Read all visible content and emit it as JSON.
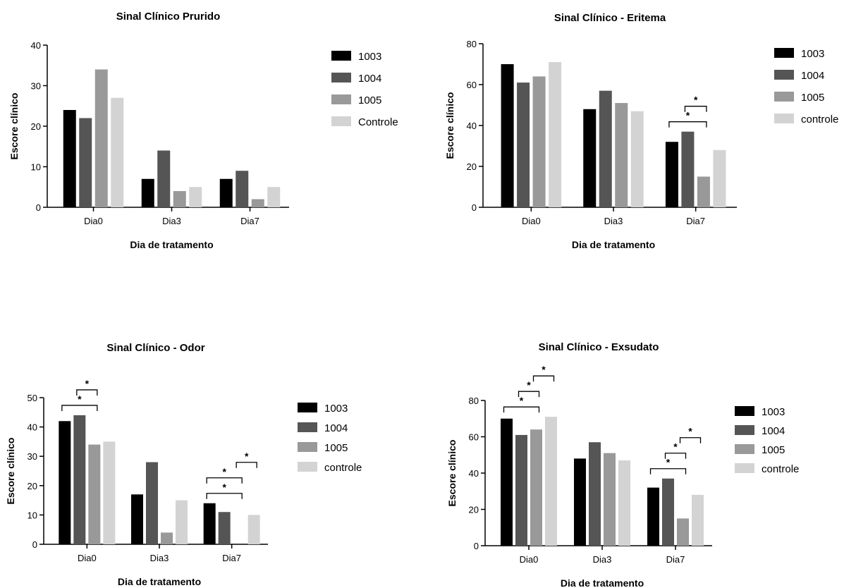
{
  "chart_data": [
    {
      "type": "bar",
      "title": "Sinal Clínico Prurido",
      "xlabel": "Dia de tratamento",
      "ylabel": "Escore clínico",
      "ylim": [
        0,
        40
      ],
      "yticks": [
        0,
        10,
        20,
        30,
        40
      ],
      "categories": [
        "Dia0",
        "Dia3",
        "Dia7"
      ],
      "legend_position": "right",
      "series": [
        {
          "name": "1003",
          "color": "#000000",
          "values": [
            24,
            7,
            7
          ]
        },
        {
          "name": "1004",
          "color": "#555555",
          "values": [
            22,
            14,
            9
          ]
        },
        {
          "name": "1005",
          "color": "#999999",
          "values": [
            34,
            4,
            2
          ]
        },
        {
          "name": "Controle",
          "color": "#d3d3d3",
          "values": [
            27,
            5,
            5
          ]
        }
      ],
      "significance": []
    },
    {
      "type": "bar",
      "title": "Sinal Clínico - Eritema",
      "xlabel": "Dia de tratamento",
      "ylabel": "Escore clínico",
      "ylim": [
        0,
        80
      ],
      "yticks": [
        0,
        20,
        40,
        60,
        80
      ],
      "categories": [
        "Dia0",
        "Dia3",
        "Dia7"
      ],
      "legend_position": "right",
      "series": [
        {
          "name": "1003",
          "color": "#000000",
          "values": [
            70,
            48,
            32
          ]
        },
        {
          "name": "1004",
          "color": "#555555",
          "values": [
            61,
            57,
            37
          ]
        },
        {
          "name": "1005",
          "color": "#999999",
          "values": [
            64,
            51,
            15
          ]
        },
        {
          "name": "controle",
          "color": "#d3d3d3",
          "values": [
            71,
            47,
            28
          ]
        }
      ],
      "significance": [
        {
          "category": 2,
          "from": 0,
          "to": 2,
          "label": "*"
        },
        {
          "category": 2,
          "from": 1,
          "to": 2,
          "label": "*"
        }
      ]
    },
    {
      "type": "bar",
      "title": "Sinal Clínico - Odor",
      "xlabel": "Dia de tratamento",
      "ylabel": "Escore clínico",
      "ylim": [
        0,
        50
      ],
      "yticks": [
        0,
        10,
        20,
        30,
        40,
        50
      ],
      "categories": [
        "Dia0",
        "Dia3",
        "Dia7"
      ],
      "legend_position": "right",
      "series": [
        {
          "name": "1003",
          "color": "#000000",
          "values": [
            42,
            17,
            14
          ]
        },
        {
          "name": "1004",
          "color": "#555555",
          "values": [
            44,
            28,
            11
          ]
        },
        {
          "name": "1005",
          "color": "#999999",
          "values": [
            34,
            4,
            0
          ]
        },
        {
          "name": "controle",
          "color": "#d3d3d3",
          "values": [
            35,
            15,
            10
          ]
        }
      ],
      "significance": [
        {
          "category": 0,
          "from": 0,
          "to": 2,
          "label": "*"
        },
        {
          "category": 0,
          "from": 1,
          "to": 2,
          "label": "*"
        },
        {
          "category": 2,
          "from": 0,
          "to": 2,
          "label": "*"
        },
        {
          "category": 2,
          "from": 0,
          "to": 2,
          "label": "*"
        },
        {
          "category": 2,
          "from": 2,
          "to": 3,
          "label": "*"
        }
      ]
    },
    {
      "type": "bar",
      "title": "Sinal Clínico - Exsudato",
      "xlabel": "Dia de tratamento",
      "ylabel": "Escore clínico",
      "ylim": [
        0,
        80
      ],
      "yticks": [
        0,
        20,
        40,
        60,
        80
      ],
      "categories": [
        "Dia0",
        "Dia3",
        "Dia7"
      ],
      "legend_position": "right",
      "series": [
        {
          "name": "1003",
          "color": "#000000",
          "values": [
            70,
            48,
            32
          ]
        },
        {
          "name": "1004",
          "color": "#555555",
          "values": [
            61,
            57,
            37
          ]
        },
        {
          "name": "1005",
          "color": "#999999",
          "values": [
            64,
            51,
            15
          ]
        },
        {
          "name": "controle",
          "color": "#d3d3d3",
          "values": [
            71,
            47,
            28
          ]
        }
      ],
      "significance": [
        {
          "category": 0,
          "from": 0,
          "to": 2,
          "label": "*"
        },
        {
          "category": 0,
          "from": 1,
          "to": 2,
          "label": "*"
        },
        {
          "category": 0,
          "from": 2,
          "to": 3,
          "label": "*"
        },
        {
          "category": 2,
          "from": 0,
          "to": 2,
          "label": "*"
        },
        {
          "category": 2,
          "from": 1,
          "to": 2,
          "label": "*"
        },
        {
          "category": 2,
          "from": 2,
          "to": 3,
          "label": "*"
        }
      ]
    }
  ]
}
